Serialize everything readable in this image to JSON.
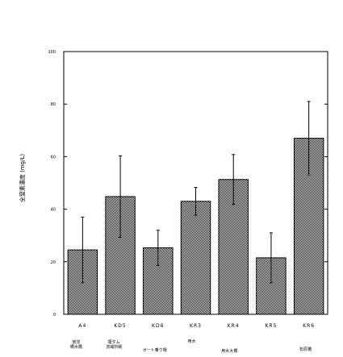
{
  "chart_data": {
    "type": "bar",
    "categories": [
      "A4",
      "KD5",
      "KD6",
      "KR3",
      "KR4",
      "KR5",
      "KR6"
    ],
    "values": [
      24.5,
      44.8,
      25.3,
      43.0,
      51.3,
      21.5,
      67.0
    ],
    "error": [
      12.5,
      15.5,
      6.7,
      5.3,
      9.5,
      9.5,
      14.0
    ],
    "ylim": [
      0,
      100
    ],
    "yticks": [
      0,
      20,
      40,
      60,
      80,
      100
    ],
    "ylabel": "全窒素濃度 (mg/L)",
    "location_labels": [
      {
        "text": "宮窪\n橋水橋",
        "category_index": 0
      },
      {
        "text": "堰ダム\n流域所戦",
        "category_index": 1
      },
      {
        "text": "ボート乗り場",
        "category_index": 2
      },
      {
        "text": "用水",
        "category_index": 3
      },
      {
        "text": "用水大橋",
        "category_index": 4
      },
      {
        "text": "松原橋",
        "category_index": 6
      }
    ],
    "bar_fill": "#d9d9d9",
    "grid": false
  }
}
